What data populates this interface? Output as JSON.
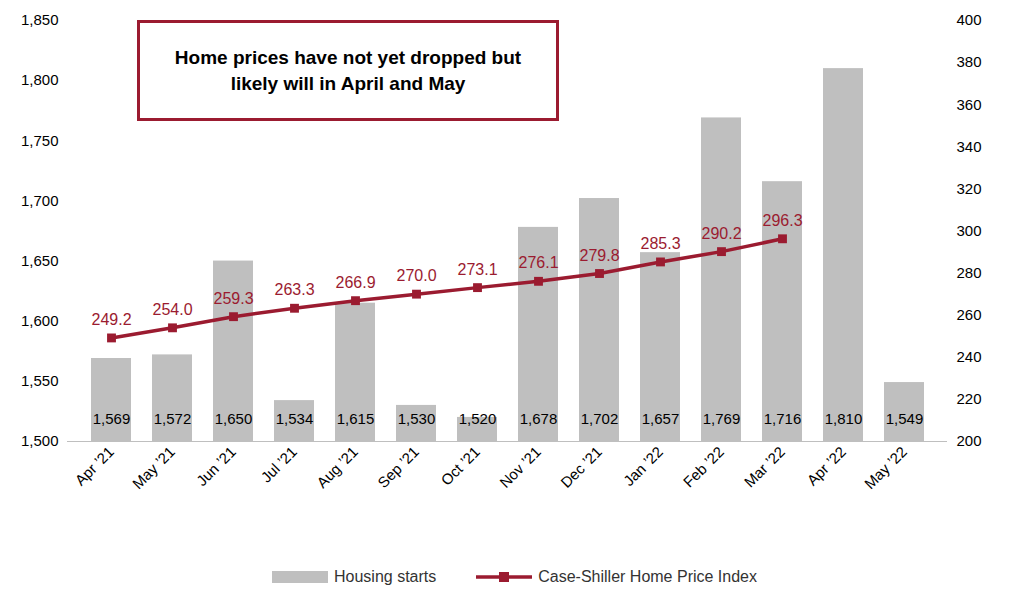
{
  "chart_data": {
    "type": "bar",
    "annotation": "Home prices have not yet dropped but likely will in April and May",
    "categories": [
      "Apr ’21",
      "May ’21",
      "Jun ’21",
      "Jul ’21",
      "Aug ’21",
      "Sep ’21",
      "Oct ’21",
      "Nov ’21",
      "Dec ’21",
      "Jan ’22",
      "Feb ’22",
      "Mar ’22",
      "Apr ’22",
      "May ’22"
    ],
    "series": [
      {
        "name": "Housing starts",
        "type": "bar",
        "color": "#bfbfbf",
        "values": [
          1569,
          1572,
          1650,
          1534,
          1615,
          1530,
          1520,
          1678,
          1702,
          1657,
          1769,
          1716,
          1810,
          1549
        ],
        "value_labels": [
          "1,569",
          "1,572",
          "1,650",
          "1,534",
          "1,615",
          "1,530",
          "1,520",
          "1,678",
          "1,702",
          "1,657",
          "1,769",
          "1,716",
          "1,810",
          "1,549"
        ]
      },
      {
        "name": "Case-Shiller Home Price Index",
        "type": "line",
        "axis": "y2",
        "color": "#9b1b30",
        "marker": "square",
        "values": [
          249.2,
          254.0,
          259.3,
          263.3,
          266.9,
          270.0,
          273.1,
          276.1,
          279.8,
          285.3,
          290.2,
          296.3,
          null,
          null
        ],
        "value_labels": [
          "249.2",
          "254.0",
          "259.3",
          "263.3",
          "266.9",
          "270.0",
          "273.1",
          "276.1",
          "279.8",
          "285.3",
          "290.2",
          "296.3",
          null,
          null
        ]
      }
    ],
    "ylim": [
      1500,
      1850
    ],
    "yticks": [
      {
        "value": 1500,
        "label": "1,500"
      },
      {
        "value": 1550,
        "label": "1,550"
      },
      {
        "value": 1600,
        "label": "1,600"
      },
      {
        "value": 1650,
        "label": "1,650"
      },
      {
        "value": 1700,
        "label": "1,700"
      },
      {
        "value": 1750,
        "label": "1,750"
      },
      {
        "value": 1800,
        "label": "1,800"
      },
      {
        "value": 1850,
        "label": "1,850"
      }
    ],
    "y2lim": [
      200,
      400
    ],
    "y2ticks": [
      200,
      220,
      240,
      260,
      280,
      300,
      320,
      340,
      360,
      380,
      400
    ],
    "data_labels": true,
    "legend": "bottom",
    "grid": false
  }
}
